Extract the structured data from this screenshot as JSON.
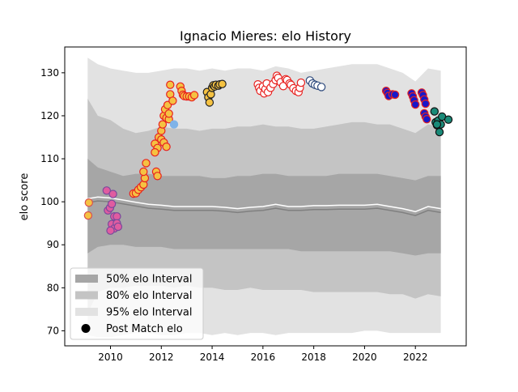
{
  "chart_data": {
    "type": "scatter",
    "title": "Ignacio Mieres: elo History",
    "xlabel": "",
    "ylabel": "elo score",
    "xlim": [
      2008.2,
      2024.0
    ],
    "ylim": [
      66.5,
      136.0
    ],
    "x_ticks": [
      2010,
      2012,
      2014,
      2016,
      2018,
      2020,
      2022
    ],
    "y_ticks": [
      70,
      80,
      90,
      100,
      110,
      120,
      130
    ],
    "grid": false,
    "legend_position": "lower-left",
    "legend": [
      {
        "label": "50% elo Interval",
        "swatch": "band50"
      },
      {
        "label": "80% elo Interval",
        "swatch": "band80"
      },
      {
        "label": "95% elo Interval",
        "swatch": "band95"
      },
      {
        "label": "Post Match elo",
        "swatch": "dot"
      }
    ],
    "colors": {
      "band50": "#a6a6a6",
      "band80": "#c4c4c4",
      "band95": "#e2e2e2",
      "mean_line": "#808080",
      "median_line": "#ffffff"
    },
    "bands": {
      "x": [
        2009.1,
        2009.5,
        2010.0,
        2010.5,
        2011.0,
        2011.5,
        2012.0,
        2012.5,
        2013.0,
        2013.5,
        2014.0,
        2014.5,
        2015.0,
        2015.5,
        2016.0,
        2016.5,
        2017.0,
        2017.5,
        2018.0,
        2018.5,
        2019.0,
        2019.5,
        2020.0,
        2020.5,
        2021.0,
        2021.5,
        2022.0,
        2022.5,
        2023.0
      ],
      "center": [
        99.8,
        100.2,
        100.0,
        99.5,
        99.0,
        98.5,
        98.3,
        98.0,
        98.0,
        98.0,
        98.0,
        97.8,
        97.5,
        97.8,
        98.0,
        98.5,
        98.0,
        98.0,
        98.2,
        98.2,
        98.3,
        98.3,
        98.3,
        98.5,
        98.0,
        97.5,
        96.8,
        98.0,
        97.5
      ],
      "upper_95": [
        133.5,
        132.0,
        131.0,
        130.5,
        130.0,
        130.0,
        130.5,
        131.0,
        131.0,
        130.5,
        131.0,
        130.5,
        131.0,
        131.0,
        130.5,
        131.5,
        131.0,
        130.0,
        130.5,
        131.0,
        131.5,
        132.0,
        132.0,
        132.0,
        131.0,
        130.0,
        128.0,
        131.0,
        130.5
      ],
      "upper_80": [
        124.0,
        120.0,
        119.0,
        117.0,
        116.0,
        116.5,
        117.5,
        117.0,
        117.0,
        116.5,
        117.0,
        117.0,
        117.5,
        117.5,
        118.0,
        117.5,
        117.5,
        117.0,
        117.0,
        117.5,
        118.0,
        118.5,
        118.5,
        118.0,
        118.0,
        117.0,
        116.0,
        118.0,
        117.5
      ],
      "upper_50": [
        110.0,
        108.0,
        107.0,
        106.0,
        106.5,
        106.5,
        106.0,
        106.0,
        106.0,
        106.0,
        105.5,
        105.5,
        106.0,
        106.0,
        106.5,
        106.5,
        106.0,
        106.0,
        106.0,
        106.0,
        106.5,
        106.5,
        106.5,
        106.5,
        106.0,
        105.5,
        105.0,
        106.0,
        106.0
      ],
      "lower_50": [
        88.0,
        89.5,
        90.0,
        90.0,
        89.5,
        89.5,
        89.5,
        89.0,
        89.0,
        89.0,
        89.0,
        89.0,
        89.0,
        89.0,
        89.0,
        89.0,
        89.0,
        88.5,
        88.5,
        88.5,
        88.5,
        88.5,
        88.5,
        88.5,
        88.5,
        88.0,
        87.5,
        88.0,
        88.0
      ],
      "lower_80": [
        74.0,
        79.0,
        80.0,
        80.0,
        80.5,
        80.5,
        80.5,
        80.0,
        80.5,
        80.0,
        80.0,
        79.5,
        79.5,
        80.0,
        79.5,
        79.5,
        79.5,
        79.5,
        79.0,
        79.0,
        79.0,
        79.0,
        79.0,
        79.0,
        78.5,
        78.5,
        77.5,
        78.5,
        78.0
      ],
      "lower_95": [
        69.0,
        68.5,
        68.5,
        69.0,
        69.5,
        69.5,
        69.0,
        69.0,
        69.5,
        69.5,
        69.0,
        69.5,
        69.0,
        69.5,
        69.5,
        69.0,
        69.5,
        69.5,
        69.5,
        69.5,
        69.5,
        69.5,
        70.0,
        70.0,
        69.5,
        69.5,
        69.5,
        69.5,
        69.5
      ]
    },
    "series": [
      {
        "face": "#f5c242",
        "edge": "#d94f4f",
        "points": [
          [
            2009.15,
            99.8
          ],
          [
            2009.12,
            96.8
          ]
        ]
      },
      {
        "face": "#e05ca0",
        "edge": "#7a4a9c",
        "points": [
          [
            2009.85,
            102.6
          ],
          [
            2010.1,
            101.8
          ],
          [
            2009.9,
            98.0
          ],
          [
            2009.98,
            98.6
          ],
          [
            2010.05,
            99.5
          ],
          [
            2010.15,
            96.6
          ],
          [
            2010.25,
            96.6
          ],
          [
            2010.05,
            94.8
          ],
          [
            2010.15,
            93.8
          ],
          [
            2010.25,
            95.0
          ],
          [
            2010.3,
            94.2
          ],
          [
            2010.0,
            93.3
          ]
        ]
      },
      {
        "face": "#f5c242",
        "edge": "#e8211f",
        "points": [
          [
            2010.9,
            101.9
          ],
          [
            2011.0,
            102.0
          ],
          [
            2011.1,
            102.8
          ],
          [
            2011.2,
            103.4
          ],
          [
            2011.3,
            104.0
          ],
          [
            2011.35,
            105.5
          ],
          [
            2011.3,
            107.0
          ],
          [
            2011.4,
            109.0
          ],
          [
            2011.75,
            113.5
          ],
          [
            2011.85,
            112.5
          ],
          [
            2011.75,
            111.5
          ],
          [
            2011.8,
            107.0
          ],
          [
            2011.85,
            106.0
          ],
          [
            2011.9,
            115.0
          ],
          [
            2012.0,
            114.5
          ],
          [
            2012.1,
            113.8
          ],
          [
            2012.2,
            112.8
          ],
          [
            2012.0,
            116.5
          ],
          [
            2012.05,
            118.0
          ],
          [
            2012.1,
            120.0
          ],
          [
            2012.2,
            119.5
          ],
          [
            2012.3,
            119.2
          ],
          [
            2012.15,
            121.5
          ],
          [
            2012.25,
            122.5
          ],
          [
            2012.3,
            120.5
          ],
          [
            2012.35,
            125.0
          ],
          [
            2012.45,
            123.5
          ],
          [
            2012.35,
            127.2
          ],
          [
            2012.75,
            126.8
          ],
          [
            2012.8,
            125.8
          ],
          [
            2012.85,
            124.9
          ],
          [
            2012.9,
            124.6
          ],
          [
            2013.0,
            124.5
          ],
          [
            2013.1,
            124.5
          ],
          [
            2013.2,
            124.3
          ],
          [
            2013.3,
            124.8
          ]
        ]
      },
      {
        "face": "#7fb3e8",
        "edge": "#7fb3e8",
        "points": [
          [
            2012.5,
            118.0
          ]
        ]
      },
      {
        "face": "#f5c242",
        "edge": "#222222",
        "points": [
          [
            2013.8,
            125.5
          ],
          [
            2013.85,
            124.3
          ],
          [
            2013.9,
            123.1
          ],
          [
            2013.95,
            125.0
          ],
          [
            2014.0,
            126.5
          ],
          [
            2014.05,
            127.1
          ],
          [
            2014.1,
            126.8
          ],
          [
            2014.15,
            127.2
          ],
          [
            2014.25,
            127.0
          ],
          [
            2014.3,
            127.3
          ],
          [
            2014.4,
            127.4
          ]
        ]
      },
      {
        "face": "#ffffff",
        "edge": "#e8211f",
        "points": [
          [
            2015.8,
            127.3
          ],
          [
            2015.85,
            126.5
          ],
          [
            2015.9,
            125.8
          ],
          [
            2016.0,
            126.8
          ],
          [
            2016.05,
            125.2
          ],
          [
            2016.1,
            126.2
          ],
          [
            2016.15,
            127.5
          ],
          [
            2016.2,
            125.5
          ],
          [
            2016.3,
            126.5
          ],
          [
            2016.4,
            127.4
          ],
          [
            2016.5,
            128.3
          ],
          [
            2016.55,
            129.3
          ],
          [
            2016.6,
            128.8
          ],
          [
            2016.7,
            127.8
          ],
          [
            2016.8,
            126.9
          ],
          [
            2016.9,
            128.5
          ],
          [
            2016.95,
            128.3
          ],
          [
            2017.05,
            127.5
          ],
          [
            2017.1,
            127.2
          ],
          [
            2017.2,
            126.4
          ],
          [
            2017.3,
            125.8
          ],
          [
            2017.4,
            125.5
          ],
          [
            2017.45,
            126.5
          ],
          [
            2017.5,
            127.7
          ]
        ]
      },
      {
        "face": "#ffffff",
        "edge": "#2e4a7d",
        "points": [
          [
            2017.85,
            128.2
          ],
          [
            2017.95,
            127.5
          ],
          [
            2018.05,
            127.2
          ],
          [
            2018.15,
            127.0
          ],
          [
            2018.3,
            126.7
          ]
        ]
      },
      {
        "face": "#1818c8",
        "edge": "#e8211f",
        "points": [
          [
            2020.85,
            125.8
          ],
          [
            2020.9,
            125.3
          ],
          [
            2020.95,
            124.6
          ],
          [
            2021.1,
            125.0
          ],
          [
            2021.2,
            124.9
          ],
          [
            2021.85,
            125.2
          ],
          [
            2021.9,
            124.5
          ],
          [
            2021.95,
            123.6
          ],
          [
            2022.0,
            122.6
          ],
          [
            2022.25,
            125.4
          ],
          [
            2022.3,
            124.8
          ],
          [
            2022.35,
            123.8
          ],
          [
            2022.4,
            122.8
          ],
          [
            2022.35,
            120.6
          ],
          [
            2022.4,
            119.8
          ],
          [
            2022.45,
            119.2
          ]
        ]
      },
      {
        "face": "#1a8a78",
        "edge": "#111111",
        "points": [
          [
            2022.75,
            121.0
          ],
          [
            2022.8,
            118.5
          ],
          [
            2022.85,
            117.8
          ],
          [
            2022.9,
            118.9
          ],
          [
            2022.95,
            116.2
          ],
          [
            2023.0,
            118.0
          ],
          [
            2023.05,
            119.8
          ],
          [
            2023.3,
            119.1
          ],
          [
            2022.85,
            118.0
          ]
        ]
      }
    ]
  }
}
